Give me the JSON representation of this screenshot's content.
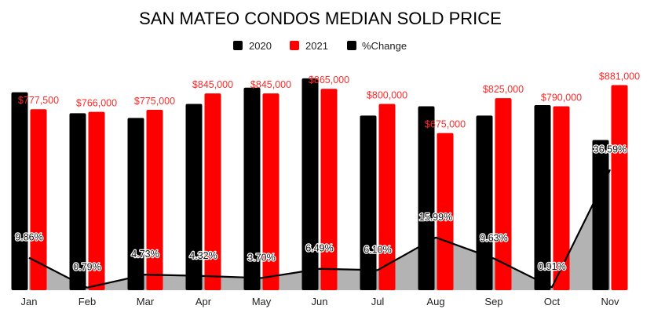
{
  "chart_data": {
    "type": "bar",
    "title": "SAN MATEO CONDOS MEDIAN SOLD PRICE",
    "categories": [
      "Jan",
      "Feb",
      "Mar",
      "Apr",
      "May",
      "Jun",
      "Jul",
      "Aug",
      "Sep",
      "Oct",
      "Nov"
    ],
    "series": [
      {
        "name": "2020",
        "type": "bar",
        "color": "#000000",
        "values": [
          850000,
          760000,
          740000,
          800000,
          870000,
          910000,
          750000,
          790000,
          750000,
          795000,
          645000
        ]
      },
      {
        "name": "2021",
        "type": "bar",
        "color": "#ff0000",
        "values": [
          777500,
          766000,
          775000,
          845000,
          845000,
          865000,
          800000,
          675000,
          825000,
          790000,
          881000
        ],
        "labels": [
          "$777,500",
          "$766,000",
          "$775,000",
          "$845,000",
          "$845,000",
          "$865,000",
          "$800,000",
          "$675,000",
          "$825,000",
          "$790,000",
          "$881,000"
        ]
      },
      {
        "name": "%Change",
        "type": "area",
        "color": "#000000",
        "fill": "#b3b3b3",
        "values": [
          9.86,
          0.79,
          4.73,
          4.32,
          3.7,
          6.49,
          6.1,
          15.99,
          9.63,
          0.91,
          36.59
        ],
        "labels": [
          "9.86%",
          "0.79%",
          "4.73%",
          "4.32%",
          "3.70%",
          "6.49%",
          "6.10%",
          "15.99%",
          "9.63%",
          "0.91%",
          "36.59%"
        ]
      }
    ],
    "ylim_price": [
      0,
      950000
    ],
    "ylim_pct": [
      0,
      50
    ],
    "legend": "top-center",
    "grid": false
  }
}
